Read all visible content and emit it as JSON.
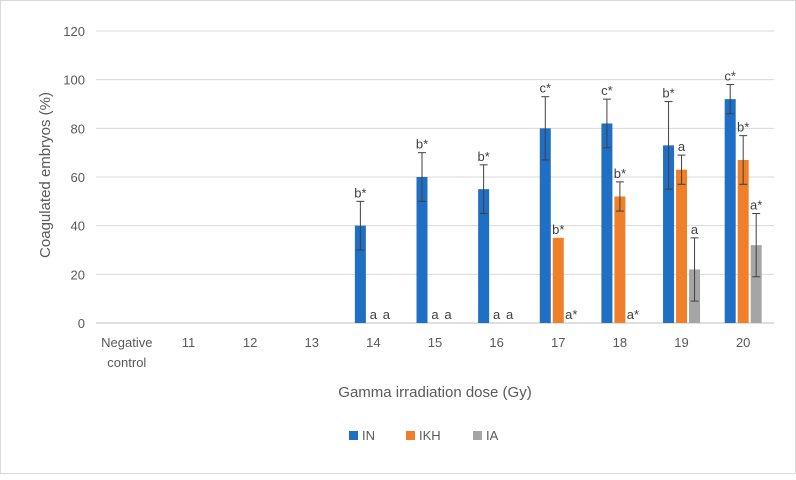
{
  "chart_data": {
    "type": "bar",
    "title": "",
    "xlabel": "Gamma irradiation dose (Gy)",
    "ylabel": "Coagulated embryos (%)",
    "ylim": [
      0,
      120
    ],
    "yticks": [
      0,
      20,
      40,
      60,
      80,
      100,
      120
    ],
    "grid": true,
    "legend_position": "bottom",
    "categories": [
      "Negative control",
      "11",
      "12",
      "13",
      "14",
      "15",
      "16",
      "17",
      "18",
      "19",
      "20"
    ],
    "series": [
      {
        "name": "IN",
        "color": "#1f6fc5",
        "values": [
          0,
          0,
          0,
          0,
          40,
          60,
          55,
          80,
          82,
          73,
          92
        ],
        "errors": [
          0,
          0,
          0,
          0,
          10,
          10,
          10,
          13,
          10,
          18,
          6
        ],
        "labels": [
          "",
          "",
          "",
          "",
          "b*",
          "b*",
          "b*",
          "c*",
          "c*",
          "b*",
          "c*"
        ]
      },
      {
        "name": "IKH",
        "color": "#f07f29",
        "values": [
          0,
          0,
          0,
          0,
          0,
          0,
          0,
          35,
          52,
          63,
          67
        ],
        "errors": [
          0,
          0,
          0,
          0,
          0,
          0,
          0,
          0,
          6,
          6,
          10
        ],
        "labels": [
          "",
          "",
          "",
          "",
          "a",
          "a",
          "a",
          "b*",
          "b*",
          "a",
          "b*"
        ]
      },
      {
        "name": "IA",
        "color": "#a5a5a5",
        "values": [
          0,
          0,
          0,
          0,
          0,
          0,
          0,
          0,
          0,
          22,
          32
        ],
        "errors": [
          0,
          0,
          0,
          0,
          0,
          0,
          0,
          0,
          0,
          13,
          13
        ],
        "labels": [
          "",
          "",
          "",
          "",
          "a",
          "a",
          "a",
          "a*",
          "a*",
          "a",
          "a*"
        ]
      }
    ]
  }
}
